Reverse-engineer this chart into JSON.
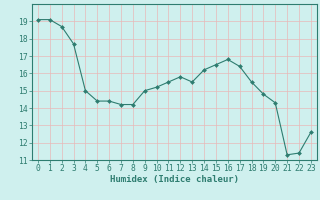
{
  "x": [
    0,
    1,
    2,
    3,
    4,
    5,
    6,
    7,
    8,
    9,
    10,
    11,
    12,
    13,
    14,
    15,
    16,
    17,
    18,
    19,
    20,
    21,
    22,
    23
  ],
  "y": [
    19.1,
    19.1,
    18.7,
    17.7,
    15.0,
    14.4,
    14.4,
    14.2,
    14.2,
    15.0,
    15.2,
    15.5,
    15.8,
    15.5,
    16.2,
    16.5,
    16.8,
    16.4,
    15.5,
    14.8,
    14.3,
    11.3,
    11.4,
    12.6
  ],
  "bg_color": "#cff0ee",
  "grid_color": "#e8b8b8",
  "line_color": "#2e7d70",
  "marker_color": "#2e7d70",
  "xlabel": "Humidex (Indice chaleur)",
  "ylim": [
    11,
    20
  ],
  "xlim": [
    -0.5,
    23.5
  ],
  "yticks": [
    11,
    12,
    13,
    14,
    15,
    16,
    17,
    18,
    19
  ],
  "xticks": [
    0,
    1,
    2,
    3,
    4,
    5,
    6,
    7,
    8,
    9,
    10,
    11,
    12,
    13,
    14,
    15,
    16,
    17,
    18,
    19,
    20,
    21,
    22,
    23
  ],
  "label_fontsize": 6.5,
  "tick_fontsize": 5.8
}
